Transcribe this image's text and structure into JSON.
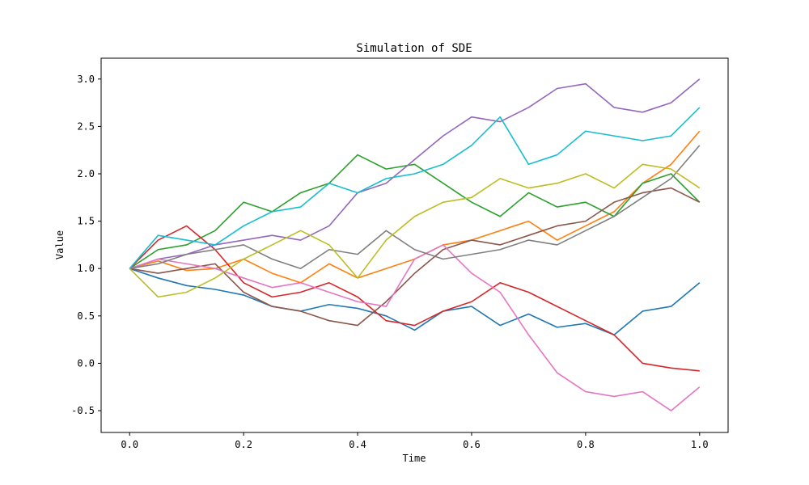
{
  "chart_data": {
    "type": "line",
    "title": "Simulation of SDE",
    "xlabel": "Time",
    "ylabel": "Value",
    "xlim": [
      -0.05,
      1.05
    ],
    "ylim": [
      -0.73,
      3.22
    ],
    "xticks": [
      0.0,
      0.2,
      0.4,
      0.6,
      0.8,
      1.0
    ],
    "xtick_labels": [
      "0.0",
      "0.2",
      "0.4",
      "0.6",
      "0.8",
      "1.0"
    ],
    "yticks": [
      -0.5,
      0.0,
      0.5,
      1.0,
      1.5,
      2.0,
      2.5,
      3.0
    ],
    "ytick_labels": [
      "-0.5",
      "0.0",
      "0.5",
      "1.0",
      "1.5",
      "2.0",
      "2.5",
      "3.0"
    ],
    "grid": false,
    "legend": "none",
    "series": [
      {
        "color": "#1f77b4",
        "x": [
          0,
          0.05,
          0.1,
          0.15,
          0.2,
          0.25,
          0.3,
          0.35,
          0.4,
          0.45,
          0.5,
          0.55,
          0.6,
          0.65,
          0.7,
          0.75,
          0.8,
          0.85,
          0.9,
          0.95,
          1.0
        ],
        "y": [
          1.0,
          0.9,
          0.82,
          0.78,
          0.72,
          0.6,
          0.55,
          0.62,
          0.58,
          0.5,
          0.35,
          0.55,
          0.6,
          0.4,
          0.52,
          0.38,
          0.42,
          0.3,
          0.55,
          0.6,
          0.85
        ]
      },
      {
        "color": "#ff7f0e",
        "x": [
          0,
          0.05,
          0.1,
          0.15,
          0.2,
          0.25,
          0.3,
          0.35,
          0.4,
          0.45,
          0.5,
          0.55,
          0.6,
          0.65,
          0.7,
          0.75,
          0.8,
          0.85,
          0.9,
          0.95,
          1.0
        ],
        "y": [
          1.0,
          1.08,
          0.98,
          1.0,
          1.1,
          0.95,
          0.85,
          1.05,
          0.9,
          1.0,
          1.1,
          1.25,
          1.3,
          1.4,
          1.5,
          1.3,
          1.45,
          1.6,
          1.9,
          2.1,
          2.45
        ]
      },
      {
        "color": "#2ca02c",
        "x": [
          0,
          0.05,
          0.1,
          0.15,
          0.2,
          0.25,
          0.3,
          0.35,
          0.4,
          0.45,
          0.5,
          0.55,
          0.6,
          0.65,
          0.7,
          0.75,
          0.8,
          0.85,
          0.9,
          0.95,
          1.0
        ],
        "y": [
          1.0,
          1.2,
          1.25,
          1.4,
          1.7,
          1.6,
          1.8,
          1.9,
          2.2,
          2.05,
          2.1,
          1.9,
          1.7,
          1.55,
          1.8,
          1.65,
          1.7,
          1.55,
          1.9,
          2.0,
          1.7
        ]
      },
      {
        "color": "#d62728",
        "x": [
          0,
          0.05,
          0.1,
          0.15,
          0.2,
          0.25,
          0.3,
          0.35,
          0.4,
          0.45,
          0.5,
          0.55,
          0.6,
          0.65,
          0.7,
          0.75,
          0.8,
          0.85,
          0.9,
          0.95,
          1.0
        ],
        "y": [
          1.0,
          1.3,
          1.45,
          1.2,
          0.85,
          0.7,
          0.75,
          0.85,
          0.7,
          0.45,
          0.4,
          0.55,
          0.65,
          0.85,
          0.75,
          0.6,
          0.45,
          0.3,
          0.0,
          -0.05,
          -0.08
        ]
      },
      {
        "color": "#9467bd",
        "x": [
          0,
          0.05,
          0.1,
          0.15,
          0.2,
          0.25,
          0.3,
          0.35,
          0.4,
          0.45,
          0.5,
          0.55,
          0.6,
          0.65,
          0.7,
          0.75,
          0.8,
          0.85,
          0.9,
          0.95,
          1.0
        ],
        "y": [
          1.0,
          1.1,
          1.15,
          1.25,
          1.3,
          1.35,
          1.3,
          1.45,
          1.8,
          1.9,
          2.15,
          2.4,
          2.6,
          2.55,
          2.7,
          2.9,
          2.95,
          2.7,
          2.65,
          2.75,
          3.0
        ]
      },
      {
        "color": "#8c564b",
        "x": [
          0,
          0.05,
          0.1,
          0.15,
          0.2,
          0.25,
          0.3,
          0.35,
          0.4,
          0.45,
          0.5,
          0.55,
          0.6,
          0.65,
          0.7,
          0.75,
          0.8,
          0.85,
          0.9,
          0.95,
          1.0
        ],
        "y": [
          1.0,
          0.95,
          1.0,
          1.05,
          0.75,
          0.6,
          0.55,
          0.45,
          0.4,
          0.65,
          0.95,
          1.2,
          1.3,
          1.25,
          1.35,
          1.45,
          1.5,
          1.7,
          1.8,
          1.85,
          1.7
        ]
      },
      {
        "color": "#e377c2",
        "x": [
          0,
          0.05,
          0.1,
          0.15,
          0.2,
          0.25,
          0.3,
          0.35,
          0.4,
          0.45,
          0.5,
          0.55,
          0.6,
          0.65,
          0.7,
          0.75,
          0.8,
          0.85,
          0.9,
          0.95,
          1.0
        ],
        "y": [
          1.0,
          1.1,
          1.05,
          1.0,
          0.9,
          0.8,
          0.85,
          0.75,
          0.65,
          0.6,
          1.1,
          1.25,
          0.95,
          0.75,
          0.3,
          -0.1,
          -0.3,
          -0.35,
          -0.3,
          -0.5,
          -0.25
        ]
      },
      {
        "color": "#7f7f7f",
        "x": [
          0,
          0.05,
          0.1,
          0.15,
          0.2,
          0.25,
          0.3,
          0.35,
          0.4,
          0.45,
          0.5,
          0.55,
          0.6,
          0.65,
          0.7,
          0.75,
          0.8,
          0.85,
          0.9,
          0.95,
          1.0
        ],
        "y": [
          1.0,
          1.05,
          1.15,
          1.2,
          1.25,
          1.1,
          1.0,
          1.2,
          1.15,
          1.4,
          1.2,
          1.1,
          1.15,
          1.2,
          1.3,
          1.25,
          1.4,
          1.55,
          1.75,
          1.95,
          2.3
        ]
      },
      {
        "color": "#bcbd22",
        "x": [
          0,
          0.05,
          0.1,
          0.15,
          0.2,
          0.25,
          0.3,
          0.35,
          0.4,
          0.45,
          0.5,
          0.55,
          0.6,
          0.65,
          0.7,
          0.75,
          0.8,
          0.85,
          0.9,
          0.95,
          1.0
        ],
        "y": [
          1.0,
          0.7,
          0.75,
          0.9,
          1.1,
          1.25,
          1.4,
          1.25,
          0.9,
          1.3,
          1.55,
          1.7,
          1.75,
          1.95,
          1.85,
          1.9,
          2.0,
          1.85,
          2.1,
          2.05,
          1.85
        ]
      },
      {
        "color": "#17becf",
        "x": [
          0,
          0.05,
          0.1,
          0.15,
          0.2,
          0.25,
          0.3,
          0.35,
          0.4,
          0.45,
          0.5,
          0.55,
          0.6,
          0.65,
          0.7,
          0.75,
          0.8,
          0.85,
          0.9,
          0.95,
          1.0
        ],
        "y": [
          1.0,
          1.35,
          1.3,
          1.25,
          1.45,
          1.6,
          1.65,
          1.9,
          1.8,
          1.95,
          2.0,
          2.1,
          2.3,
          2.6,
          2.1,
          2.2,
          2.45,
          2.4,
          2.35,
          2.4,
          2.7
        ]
      }
    ]
  }
}
